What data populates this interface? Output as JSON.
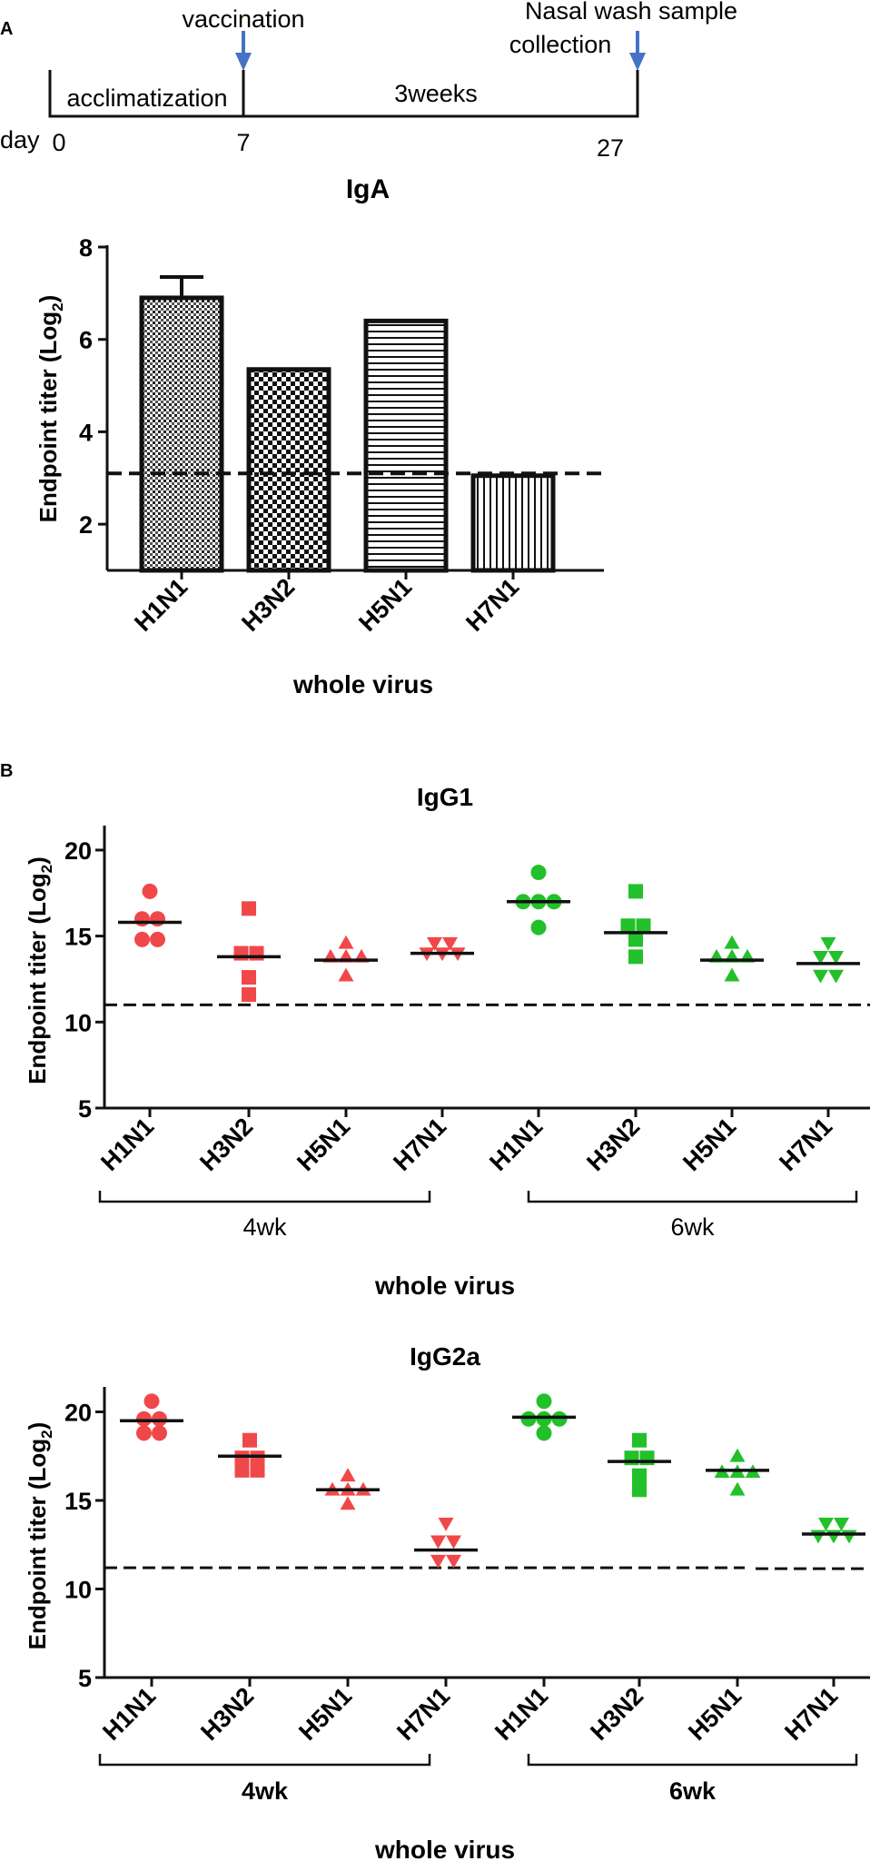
{
  "panels": {
    "a": "A",
    "b": "B"
  },
  "timeline": {
    "events": [
      "vaccination",
      "Nasal wash sample",
      "collection"
    ],
    "segments": [
      "acclimatization",
      "3weeks"
    ],
    "day_label": "day",
    "days": [
      "0",
      "7",
      "27"
    ],
    "arrow_color": "#4472c4"
  },
  "colors": {
    "week4": "#f04848",
    "week6": "#22c02a"
  },
  "chart_data": [
    {
      "type": "bar",
      "title": "IgA",
      "xlabel": "whole virus",
      "ylabel_main": "Endpoint titer (Log",
      "ylabel_sub": "2",
      "ylabel_end": ")",
      "ylim": [
        1,
        8
      ],
      "yticks": [
        "2",
        "4",
        "6",
        "8"
      ],
      "categories": [
        "H1N1",
        "H3N2",
        "H5N1",
        "H7N1"
      ],
      "values": [
        6.9,
        5.35,
        6.4,
        3.05
      ],
      "errors": [
        0.45,
        0,
        0,
        0
      ],
      "patterns": [
        "dense-grid",
        "checkerboard",
        "horizontal-lines",
        "vertical-lines"
      ],
      "cutoff": 3.1
    },
    {
      "type": "scatter",
      "title": "IgG1",
      "xlabel": "whole virus",
      "ylabel_main": "Endpoint titer (Log",
      "ylabel_sub": "2",
      "ylabel_end": ")",
      "ylim": [
        5,
        21
      ],
      "yticks": [
        "5",
        "10",
        "15",
        "20"
      ],
      "groups": [
        "4wk",
        "6wk"
      ],
      "categories": [
        "H1N1",
        "H3N2",
        "H5N1",
        "H7N1",
        "H1N1",
        "H3N2",
        "H5N1",
        "H7N1"
      ],
      "markers": [
        "circle",
        "square",
        "triangle-up",
        "triangle-down",
        "circle",
        "square",
        "triangle-up",
        "triangle-down"
      ],
      "points": [
        [
          17.6,
          16.0,
          16.0,
          14.8,
          14.8
        ],
        [
          16.6,
          14.0,
          14.0,
          12.6,
          11.6
        ],
        [
          14.6,
          13.8,
          13.8,
          13.8,
          12.7
        ],
        [
          14.6,
          14.6,
          14.0,
          14.0,
          14.0
        ],
        [
          18.7,
          17.0,
          17.0,
          17.0,
          15.5
        ],
        [
          17.6,
          15.6,
          15.6,
          14.8,
          13.8
        ],
        [
          14.6,
          13.8,
          13.8,
          13.8,
          12.7
        ],
        [
          14.6,
          13.8,
          13.8,
          12.7,
          12.7
        ]
      ],
      "medians": [
        15.8,
        13.8,
        13.6,
        14.0,
        17.0,
        15.2,
        13.6,
        13.4
      ],
      "cutoff": 11.0
    },
    {
      "type": "scatter",
      "title": "IgG2a",
      "xlabel": "whole virus",
      "ylabel_main": "Endpoint titer (Log",
      "ylabel_sub": "2",
      "ylabel_end": ")",
      "ylim": [
        5,
        21
      ],
      "yticks": [
        "5",
        "10",
        "15",
        "20"
      ],
      "groups": [
        "4wk",
        "6wk"
      ],
      "categories": [
        "H1N1",
        "H3N2",
        "H5N1",
        "H7N1",
        "H1N1",
        "H3N2",
        "H5N1",
        "H7N1"
      ],
      "markers": [
        "circle",
        "square",
        "triangle-up",
        "triangle-down",
        "circle",
        "square",
        "triangle-up",
        "triangle-down"
      ],
      "points": [
        [
          20.6,
          19.6,
          19.6,
          18.8,
          18.8
        ],
        [
          18.4,
          17.4,
          17.4,
          16.7,
          16.7
        ],
        [
          16.4,
          15.6,
          15.6,
          15.6,
          14.8
        ],
        [
          13.7,
          12.7,
          12.7,
          11.6,
          11.6
        ],
        [
          20.6,
          19.6,
          19.6,
          19.6,
          18.8
        ],
        [
          18.4,
          17.4,
          17.4,
          16.4,
          15.6
        ],
        [
          17.5,
          16.6,
          16.6,
          16.6,
          15.6
        ],
        [
          13.7,
          13.7,
          13.0,
          13.0,
          13.0
        ]
      ],
      "medians": [
        19.5,
        17.5,
        15.6,
        12.2,
        19.7,
        17.2,
        16.7,
        13.1
      ],
      "cutoff": 11.2
    }
  ]
}
